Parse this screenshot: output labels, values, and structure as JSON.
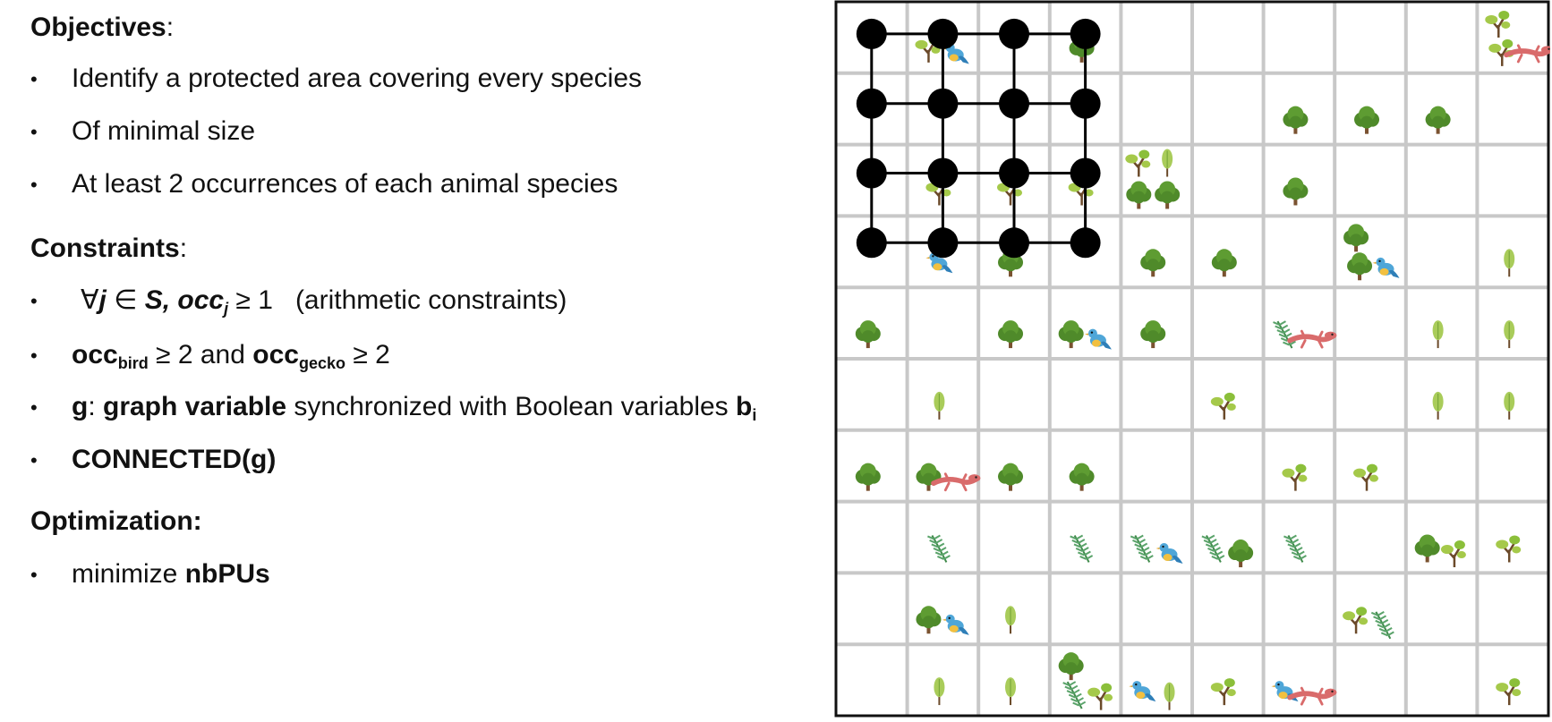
{
  "objectives": {
    "title": "Objectives",
    "colon": ":",
    "items": [
      "Identify a protected area covering every species",
      "Of minimal size",
      "At least 2 occurrences of each animal species"
    ]
  },
  "constraints": {
    "title": "Constraints",
    "colon": ":",
    "c1": {
      "forall": "∀",
      "j": "j",
      "in": " ∈ ",
      "S": "S,",
      "occ": " occ",
      "sub": "j",
      "geq": " ≥ 1",
      "note": "(arithmetic constraints)"
    },
    "c2": {
      "occ1": "occ",
      "sub1": "bird",
      "mid": " ≥ 2 and ",
      "occ2": "occ",
      "sub2": "gecko",
      "end": " ≥ 2"
    },
    "c3": {
      "g": "g",
      "colon": ": ",
      "gv": "graph variable",
      "rest": " synchronized with Boolean variables ",
      "b": "b",
      "sub": "i"
    },
    "c4": "CONNECTED(g)"
  },
  "optimization": {
    "title": "Optimization:",
    "text": "minimize ",
    "bold": "nbPUs"
  },
  "bullet_char": "•",
  "grid": {
    "rows": 10,
    "cols": 10,
    "line_color": "#c8c8c8",
    "border_color": "#111111",
    "graph_color": "#000000",
    "graph_nodes_cols": 4,
    "graph_nodes_rows": 4,
    "icons": [
      {
        "r": 0,
        "c": 1,
        "k": [
          "tree-small",
          "bird"
        ]
      },
      {
        "r": 0,
        "c": 3,
        "k": [
          "tree-round"
        ]
      },
      {
        "r": 0,
        "c": 9,
        "k": [
          "tree-small",
          "tree-small",
          "gecko"
        ]
      },
      {
        "r": 1,
        "c": 6,
        "k": [
          "tree-round"
        ]
      },
      {
        "r": 1,
        "c": 7,
        "k": [
          "tree-round"
        ]
      },
      {
        "r": 1,
        "c": 8,
        "k": [
          "tree-round"
        ]
      },
      {
        "r": 2,
        "c": 1,
        "k": [
          "tree-small"
        ]
      },
      {
        "r": 2,
        "c": 2,
        "k": [
          "tree-small"
        ]
      },
      {
        "r": 2,
        "c": 3,
        "k": [
          "tree-small"
        ]
      },
      {
        "r": 2,
        "c": 4,
        "k": [
          "tree-small",
          "sapling",
          "tree-round",
          "tree-round"
        ]
      },
      {
        "r": 2,
        "c": 6,
        "k": [
          "tree-round"
        ]
      },
      {
        "r": 3,
        "c": 1,
        "k": [
          "bird"
        ]
      },
      {
        "r": 3,
        "c": 2,
        "k": [
          "tree-round"
        ]
      },
      {
        "r": 3,
        "c": 4,
        "k": [
          "tree-round"
        ]
      },
      {
        "r": 3,
        "c": 5,
        "k": [
          "tree-round"
        ]
      },
      {
        "r": 3,
        "c": 7,
        "k": [
          "tree-round",
          "tree-round",
          "bird"
        ]
      },
      {
        "r": 3,
        "c": 9,
        "k": [
          "sapling"
        ]
      },
      {
        "r": 4,
        "c": 0,
        "k": [
          "tree-round"
        ]
      },
      {
        "r": 4,
        "c": 2,
        "k": [
          "tree-round"
        ]
      },
      {
        "r": 4,
        "c": 3,
        "k": [
          "tree-round",
          "bird"
        ]
      },
      {
        "r": 4,
        "c": 4,
        "k": [
          "tree-round"
        ]
      },
      {
        "r": 4,
        "c": 6,
        "k": [
          "fern",
          "gecko"
        ]
      },
      {
        "r": 4,
        "c": 8,
        "k": [
          "sapling"
        ]
      },
      {
        "r": 4,
        "c": 9,
        "k": [
          "sapling"
        ]
      },
      {
        "r": 5,
        "c": 1,
        "k": [
          "sapling"
        ]
      },
      {
        "r": 5,
        "c": 5,
        "k": [
          "tree-small"
        ]
      },
      {
        "r": 5,
        "c": 8,
        "k": [
          "sapling"
        ]
      },
      {
        "r": 5,
        "c": 9,
        "k": [
          "sapling"
        ]
      },
      {
        "r": 6,
        "c": 0,
        "k": [
          "tree-round"
        ]
      },
      {
        "r": 6,
        "c": 1,
        "k": [
          "tree-round",
          "gecko"
        ]
      },
      {
        "r": 6,
        "c": 2,
        "k": [
          "tree-round"
        ]
      },
      {
        "r": 6,
        "c": 3,
        "k": [
          "tree-round"
        ]
      },
      {
        "r": 6,
        "c": 6,
        "k": [
          "tree-small"
        ]
      },
      {
        "r": 6,
        "c": 7,
        "k": [
          "tree-small"
        ]
      },
      {
        "r": 7,
        "c": 1,
        "k": [
          "fern"
        ]
      },
      {
        "r": 7,
        "c": 3,
        "k": [
          "fern"
        ]
      },
      {
        "r": 7,
        "c": 4,
        "k": [
          "fern",
          "bird"
        ]
      },
      {
        "r": 7,
        "c": 5,
        "k": [
          "fern",
          "tree-round"
        ]
      },
      {
        "r": 7,
        "c": 6,
        "k": [
          "fern"
        ]
      },
      {
        "r": 7,
        "c": 8,
        "k": [
          "tree-round",
          "tree-small"
        ]
      },
      {
        "r": 7,
        "c": 9,
        "k": [
          "tree-small"
        ]
      },
      {
        "r": 8,
        "c": 1,
        "k": [
          "tree-round",
          "bird"
        ]
      },
      {
        "r": 8,
        "c": 2,
        "k": [
          "sapling"
        ]
      },
      {
        "r": 8,
        "c": 7,
        "k": [
          "tree-small",
          "fern"
        ]
      },
      {
        "r": 9,
        "c": 1,
        "k": [
          "sapling"
        ]
      },
      {
        "r": 9,
        "c": 2,
        "k": [
          "sapling"
        ]
      },
      {
        "r": 9,
        "c": 3,
        "k": [
          "tree-round",
          "fern",
          "tree-small"
        ]
      },
      {
        "r": 9,
        "c": 4,
        "k": [
          "bird",
          "sapling"
        ]
      },
      {
        "r": 9,
        "c": 5,
        "k": [
          "tree-small"
        ]
      },
      {
        "r": 9,
        "c": 6,
        "k": [
          "bird",
          "gecko"
        ]
      },
      {
        "r": 9,
        "c": 9,
        "k": [
          "tree-small"
        ]
      }
    ]
  }
}
